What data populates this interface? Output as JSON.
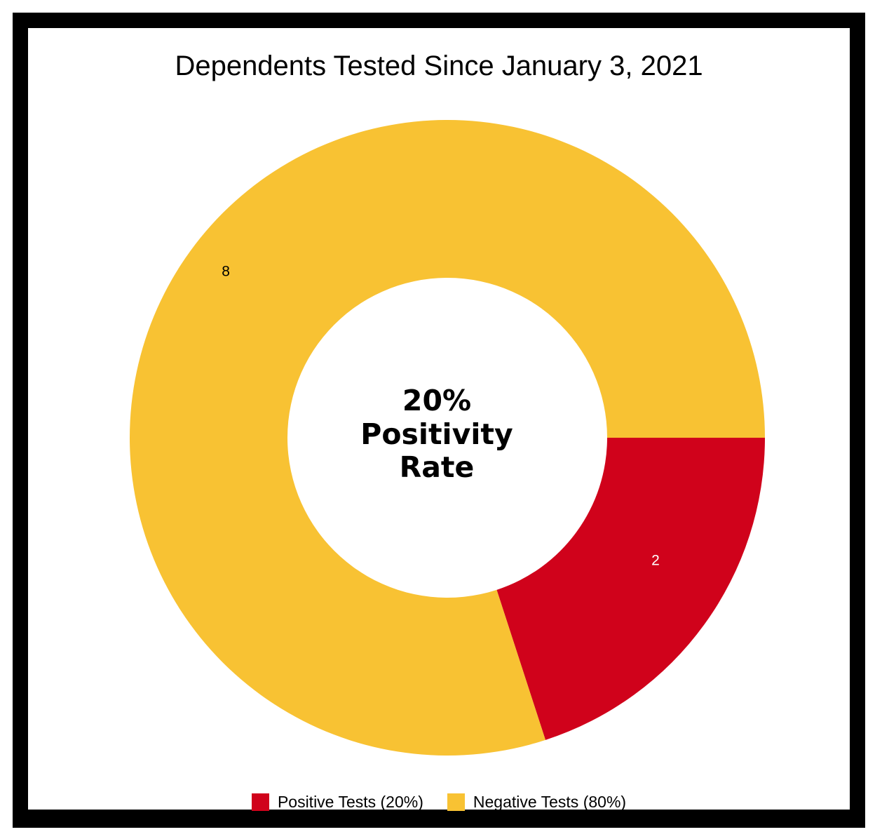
{
  "chart_data": {
    "type": "pie",
    "variant": "donut",
    "title": "Dependents Tested Since January 3, 2021",
    "center_label": [
      "20%",
      "Positivity",
      "Rate"
    ],
    "slices": [
      {
        "name": "Positive Tests (20%)",
        "value": 2,
        "label": "2",
        "color": "#d0021b",
        "label_color": "#ffffff"
      },
      {
        "name": "Negative Tests (80%)",
        "value": 8,
        "label": "8",
        "color": "#f8c233",
        "label_color": "#000000"
      }
    ],
    "legend_position": "bottom"
  }
}
